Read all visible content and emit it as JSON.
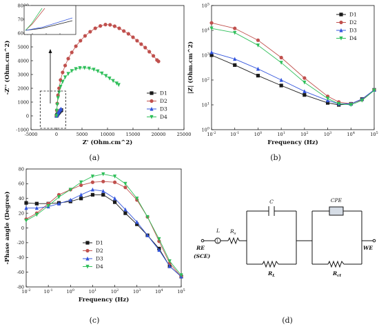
{
  "colors": {
    "D1": "#1a1a1a",
    "D2": "#c0504d",
    "D3": "#3355dd",
    "D4": "#2fbf5a",
    "axis": "#111111"
  },
  "panels": {
    "a": "(a)",
    "b": "(b)",
    "c": "(c)",
    "d": "(d)"
  },
  "circuit": {
    "L": "L",
    "Rs": "R",
    "Rs_sub": "s",
    "C": "C",
    "RL": "R",
    "RL_sub": "L",
    "CPE": "CPE",
    "Rct": "R",
    "Rct_sub": "ct",
    "RE": "RE",
    "SCE": "(SCE)",
    "WE": "WE"
  },
  "chart_data": [
    {
      "id": "a",
      "type": "scatter",
      "title": "",
      "xlabel": "Z' (Ohm.cm^2)",
      "ylabel": "-Z'' (Ohm.cm^2)",
      "xlim": [
        -5000,
        25000
      ],
      "ylim": [
        -1000,
        8000
      ],
      "xticks": [
        "-5000",
        "0",
        "5000",
        "10000",
        "15000",
        "20000",
        "25000"
      ],
      "yticks": [
        "-1000",
        "0",
        "1000",
        "2000",
        "3000",
        "4000",
        "5000",
        "6000",
        "7000",
        "8000"
      ],
      "legend": {
        "position": "right",
        "entries": [
          "D1",
          "D2",
          "D3",
          "D4"
        ]
      },
      "series": [
        {
          "name": "D1",
          "marker": "square",
          "x": [
            0,
            80,
            180,
            300,
            450,
            600,
            800,
            950
          ],
          "y": [
            0,
            50,
            110,
            170,
            240,
            300,
            370,
            420
          ]
        },
        {
          "name": "D2",
          "marker": "circle",
          "x": [
            0,
            50,
            150,
            300,
            500,
            800,
            1200,
            1700,
            2300,
            3000,
            3800,
            4700,
            5600,
            6600,
            7600,
            8600,
            9600,
            10500,
            11400,
            12300,
            13200,
            14100,
            15000,
            15800,
            16600,
            17400,
            18200,
            19000,
            19700,
            20000
          ],
          "y": [
            0,
            400,
            900,
            1500,
            2000,
            2600,
            3150,
            3650,
            4150,
            4600,
            5050,
            5450,
            5800,
            6100,
            6350,
            6520,
            6620,
            6600,
            6500,
            6350,
            6150,
            5950,
            5700,
            5450,
            5200,
            4950,
            4650,
            4350,
            4050,
            3950
          ]
        },
        {
          "name": "D3",
          "marker": "triangle-up",
          "x": [
            0,
            80,
            180,
            300,
            430,
            580,
            750,
            900
          ],
          "y": [
            0,
            60,
            130,
            210,
            290,
            370,
            450,
            510
          ]
        },
        {
          "name": "D4",
          "marker": "triangle-down",
          "x": [
            0,
            50,
            150,
            300,
            500,
            800,
            1200,
            1700,
            2300,
            3000,
            3800,
            4600,
            5500,
            6400,
            7300,
            8100,
            8900,
            9700,
            10400,
            11100,
            11800,
            12200
          ],
          "y": [
            0,
            380,
            820,
            1300,
            1700,
            2120,
            2470,
            2800,
            3050,
            3260,
            3400,
            3470,
            3480,
            3440,
            3360,
            3240,
            3080,
            2900,
            2720,
            2540,
            2360,
            2250
          ]
        }
      ]
    },
    {
      "id": "b",
      "type": "line",
      "title": "",
      "xlabel": "Frequency (Hz)",
      "ylabel": "|Z| (Ohm.cm^2)",
      "xscale": "log",
      "yscale": "log",
      "xlim": [
        0.01,
        100000
      ],
      "ylim": [
        1,
        100000
      ],
      "xticks": [
        "10^-2",
        "10^-1",
        "10^0",
        "10^1",
        "10^2",
        "10^3",
        "10^4",
        "10^5"
      ],
      "yticks": [
        "10^0",
        "10^1",
        "10^2",
        "10^3",
        "10^4",
        "10^5"
      ],
      "legend": {
        "position": "top-right",
        "entries": [
          "D1",
          "D2",
          "D3",
          "D4"
        ]
      },
      "series": [
        {
          "name": "D1",
          "x": [
            0.01,
            0.1,
            1,
            10,
            100,
            1000,
            3000,
            10000,
            30000,
            100000
          ],
          "y": [
            1000,
            400,
            150,
            60,
            25,
            12,
            10,
            11,
            17,
            40
          ]
        },
        {
          "name": "D2",
          "x": [
            0.01,
            0.1,
            1,
            10,
            100,
            1000,
            3000,
            10000,
            30000,
            100000
          ],
          "y": [
            20000,
            12000,
            4000,
            800,
            120,
            22,
            13,
            11,
            16,
            40
          ]
        },
        {
          "name": "D3",
          "x": [
            0.01,
            0.1,
            1,
            10,
            100,
            1000,
            3000,
            10000,
            30000,
            100000
          ],
          "y": [
            1300,
            700,
            280,
            100,
            35,
            15,
            11,
            11,
            17,
            40
          ]
        },
        {
          "name": "D4",
          "x": [
            0.01,
            0.1,
            1,
            10,
            100,
            1000,
            3000,
            10000,
            30000,
            100000
          ],
          "y": [
            12000,
            8000,
            2500,
            500,
            80,
            18,
            11,
            10,
            15,
            38
          ]
        }
      ]
    },
    {
      "id": "c",
      "type": "line",
      "title": "",
      "xlabel": "Frequency (Hz)",
      "ylabel": "-Phase angle (Degree)",
      "xscale": "log",
      "xlim": [
        0.01,
        100000
      ],
      "ylim": [
        -80,
        80
      ],
      "xticks": [
        "10^-2",
        "10^-1",
        "10^0",
        "10^1",
        "10^2",
        "10^3",
        "10^4",
        "10^5"
      ],
      "yticks": [
        "-80",
        "-60",
        "-40",
        "-20",
        "0",
        "20",
        "40",
        "60",
        "80"
      ],
      "legend": {
        "position": "center-right",
        "entries": [
          "D1",
          "D2",
          "D3",
          "D4"
        ]
      },
      "series": [
        {
          "name": "D1",
          "x": [
            0.01,
            0.03,
            0.1,
            0.3,
            1,
            3,
            10,
            30,
            100,
            300,
            1000,
            3000,
            10000,
            30000,
            100000
          ],
          "y": [
            34,
            33,
            33,
            34,
            36,
            40,
            45,
            45,
            35,
            20,
            5,
            -10,
            -28,
            -52,
            -66
          ]
        },
        {
          "name": "D2",
          "x": [
            0.01,
            0.03,
            0.1,
            0.3,
            1,
            3,
            10,
            30,
            100,
            300,
            1000,
            3000,
            10000,
            30000,
            100000
          ],
          "y": [
            12,
            20,
            33,
            45,
            52,
            58,
            62,
            63,
            62,
            55,
            38,
            15,
            -18,
            -48,
            -66
          ]
        },
        {
          "name": "D3",
          "x": [
            0.01,
            0.03,
            0.1,
            0.3,
            1,
            3,
            10,
            30,
            100,
            300,
            1000,
            3000,
            10000,
            30000,
            100000
          ],
          "y": [
            27,
            27,
            29,
            33,
            38,
            45,
            52,
            50,
            40,
            25,
            8,
            -10,
            -30,
            -52,
            -66
          ]
        },
        {
          "name": "D4",
          "x": [
            0.01,
            0.03,
            0.1,
            0.3,
            1,
            3,
            10,
            30,
            100,
            300,
            1000,
            3000,
            10000,
            30000,
            100000
          ],
          "y": [
            10,
            18,
            30,
            42,
            52,
            62,
            70,
            73,
            70,
            60,
            40,
            15,
            -15,
            -45,
            -64
          ]
        }
      ]
    }
  ]
}
